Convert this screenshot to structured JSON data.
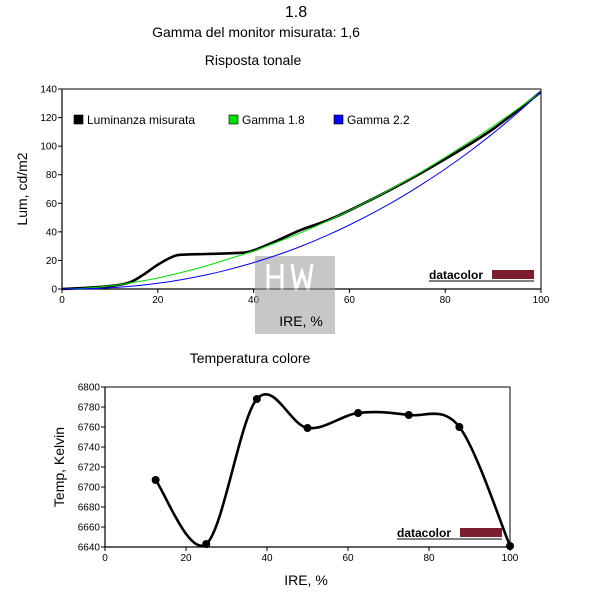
{
  "header": {
    "title": "1.8",
    "subtitle": "Gamma del monitor misurata: 1,6"
  },
  "watermark": {
    "brand_color": "#7a1f2e",
    "text": "datacolor"
  },
  "chart_data": [
    {
      "type": "line",
      "title": "Risposta tonale",
      "xlabel": "IRE, %",
      "ylabel": "Lum, cd/m2",
      "xlim": [
        0,
        100
      ],
      "ylim": [
        0,
        140
      ],
      "xticks": [
        0,
        20,
        40,
        60,
        80,
        100
      ],
      "yticks": [
        0,
        20,
        40,
        60,
        80,
        100,
        120,
        140
      ],
      "legend_position": "top-left, horizontal",
      "series": [
        {
          "name": "Luminanza misurata",
          "color": "#000000",
          "x": [
            0,
            5,
            10,
            14,
            17,
            20,
            23,
            25,
            30,
            35,
            38,
            40,
            45,
            50,
            55,
            60,
            70,
            80,
            90,
            100
          ],
          "y": [
            0,
            0.8,
            2,
            4.5,
            10,
            17,
            22.5,
            24,
            24.5,
            25,
            25.5,
            27,
            34,
            41.5,
            47.5,
            55,
            72,
            91,
            112,
            138
          ]
        },
        {
          "name": "Gamma 1.8",
          "color": "#00e000",
          "x": [
            0,
            5,
            10,
            15,
            20,
            25,
            30,
            35,
            40,
            45,
            50,
            55,
            60,
            65,
            70,
            75,
            80,
            85,
            90,
            95,
            100
          ],
          "y": [
            0,
            0.6,
            2.2,
            4.6,
            7.7,
            11.6,
            16.1,
            21.3,
            26.6,
            32.9,
            39.6,
            47.0,
            54.9,
            63.4,
            72.4,
            82.0,
            92.2,
            102.8,
            114.0,
            125.7,
            138.0
          ]
        },
        {
          "name": "Gamma 2.2",
          "color": "#0000ff",
          "x": [
            0,
            5,
            10,
            15,
            20,
            25,
            30,
            35,
            40,
            45,
            50,
            55,
            60,
            65,
            70,
            75,
            80,
            85,
            90,
            95,
            100
          ],
          "y": [
            0,
            0.2,
            0.9,
            2.1,
            4.0,
            6.6,
            9.8,
            13.8,
            18.5,
            23.9,
            30.0,
            37.0,
            44.8,
            53.4,
            62.7,
            73.0,
            84.0,
            96.0,
            109.0,
            123.0,
            138.0
          ]
        }
      ]
    },
    {
      "type": "line",
      "title": "Temperatura colore",
      "xlabel": "IRE, %",
      "ylabel": "Temp, Kelvin",
      "xlim": [
        0,
        100
      ],
      "ylim": [
        6640,
        6800
      ],
      "xticks": [
        0,
        20,
        40,
        60,
        80,
        100
      ],
      "yticks": [
        6640,
        6660,
        6680,
        6700,
        6720,
        6740,
        6760,
        6780,
        6800
      ],
      "series": [
        {
          "color": "#000000",
          "x": [
            12.5,
            25,
            37.5,
            50,
            62.5,
            75,
            87.5,
            100
          ],
          "y": [
            6707,
            6643,
            6788,
            6759,
            6774,
            6772,
            6760,
            6641
          ]
        }
      ]
    }
  ]
}
